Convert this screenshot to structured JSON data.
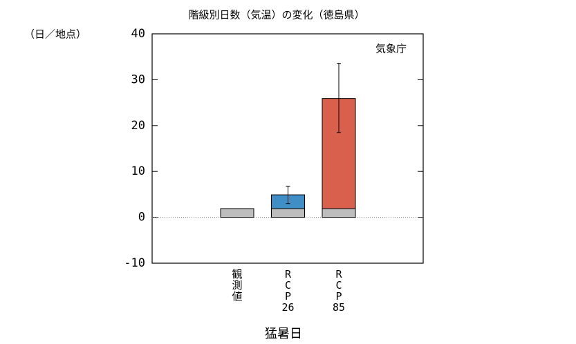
{
  "chart_data": {
    "type": "stacked_bar",
    "title": "階級別日数（気温）の変化（徳島県）",
    "y_unit_label": "（日／地点）",
    "source": "気象庁",
    "x_label": "猛暑日",
    "categories": [
      "観測値",
      "RCP26",
      "RCP85"
    ],
    "series": [
      {
        "color": "#bdbdbd",
        "values": [
          1.9,
          1.9,
          1.9
        ]
      },
      {
        "colors": [
          null,
          "#3f8fc6",
          "#d9604c"
        ],
        "values": [
          null,
          3.0,
          24.0
        ]
      }
    ],
    "error_low": [
      null,
      3.0,
      18.5
    ],
    "error_high": [
      null,
      6.8,
      33.6
    ],
    "ylim": [
      -10,
      40
    ],
    "yticks": [
      -10,
      0,
      10,
      20,
      30,
      40
    ],
    "zero_line": true
  }
}
